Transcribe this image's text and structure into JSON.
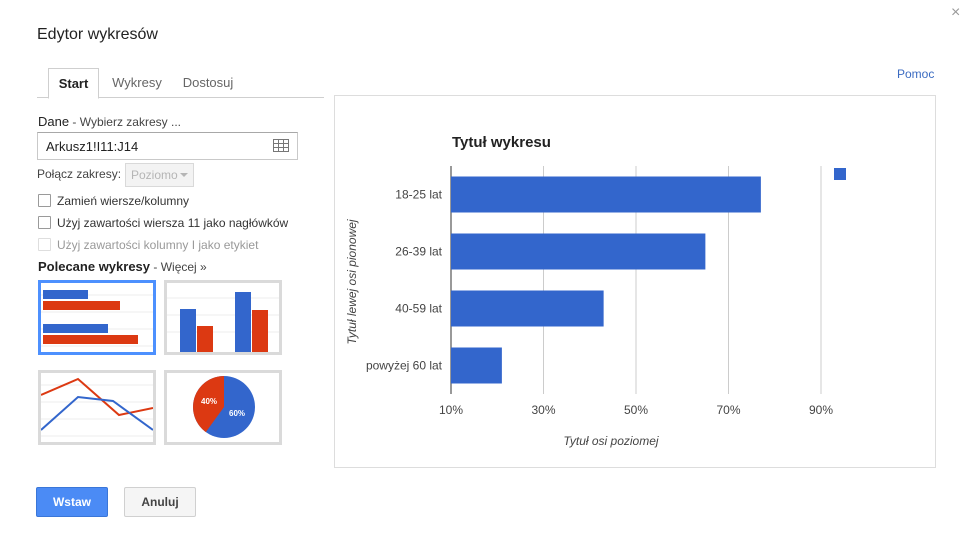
{
  "dialog": {
    "title": "Edytor wykresów",
    "close_glyph": "×"
  },
  "tabs": [
    {
      "label": "Start"
    },
    {
      "label": "Wykresy"
    },
    {
      "label": "Dostosuj"
    }
  ],
  "help_link": "Pomoc",
  "data_section": {
    "label": "Dane",
    "sub_link": " - Wybierz zakresy ...",
    "range_value": "Arkusz1!I11:J14",
    "combine_label": "Połącz zakresy:",
    "combine_value": "Poziomo"
  },
  "options": [
    {
      "label": "Zamień wiersze/kolumny",
      "checked": false,
      "enabled": true
    },
    {
      "label": "Użyj zawartości wiersza 11 jako nagłówków",
      "checked": false,
      "enabled": true
    },
    {
      "label": "Użyj zawartości kolumny I jako etykiet",
      "checked": false,
      "enabled": false
    }
  ],
  "recommended": {
    "title": "Polecane wykresy",
    "more_link": " - Więcej »",
    "thumbnails": [
      {
        "name": "bar",
        "selected": true
      },
      {
        "name": "column",
        "selected": false
      },
      {
        "name": "line",
        "selected": false
      },
      {
        "name": "pie",
        "selected": false,
        "labels": [
          "40%",
          "60%"
        ]
      }
    ]
  },
  "colors": {
    "series": "#3366cc",
    "secondary": "#dc3912",
    "accent": "#4d90fe"
  },
  "buttons": {
    "insert": "Wstaw",
    "cancel": "Anuluj"
  },
  "chart_data": {
    "type": "bar",
    "orientation": "horizontal",
    "title": "Tytuł wykresu",
    "xlabel": "Tytuł osi poziomej",
    "ylabel": "Tytuł lewej osi pionowej",
    "categories": [
      "18-25 lat",
      "26-39 lat",
      "40-59 lat",
      "powyżej 60 lat"
    ],
    "series": [
      {
        "values": [
          77,
          65,
          43,
          21
        ]
      }
    ],
    "x_ticks": [
      "10%",
      "30%",
      "50%",
      "70%",
      "90%"
    ],
    "xlim": [
      10,
      90
    ],
    "x_tick_values": [
      10,
      30,
      50,
      70,
      90
    ],
    "grid": true,
    "legend": "top-right"
  }
}
